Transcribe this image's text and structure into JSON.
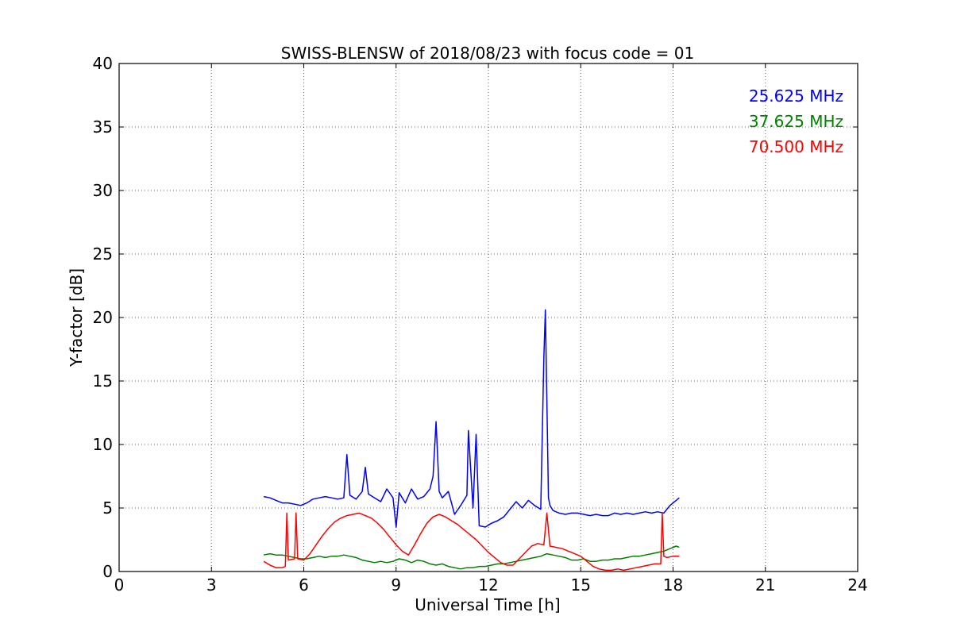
{
  "chart_data": {
    "type": "line",
    "title": "SWISS-BLENSW of 2018/08/23 with focus code = 01",
    "xlabel": "Universal Time [h]",
    "ylabel": "Y-factor [dB]",
    "xlim": [
      0,
      24
    ],
    "ylim": [
      0,
      40
    ],
    "xticks": [
      0,
      3,
      6,
      9,
      12,
      15,
      18,
      21,
      24
    ],
    "yticks": [
      0,
      5,
      10,
      15,
      20,
      25,
      30,
      35,
      40
    ],
    "xtick_labels": [
      "0",
      "3",
      "6",
      "9",
      "12",
      "15",
      "18",
      "21",
      "24"
    ],
    "ytick_labels": [
      "0",
      "5",
      "10",
      "15",
      "20",
      "25",
      "30",
      "35",
      "40"
    ],
    "grid": true,
    "legend_position": "top-right",
    "series": [
      {
        "name": "25.625 MHz",
        "color": "#0000ff",
        "x": [
          4.7,
          4.9,
          5.1,
          5.3,
          5.5,
          5.7,
          5.9,
          6.1,
          6.3,
          6.5,
          6.7,
          6.9,
          7.1,
          7.3,
          7.4,
          7.5,
          7.7,
          7.9,
          8.0,
          8.1,
          8.3,
          8.5,
          8.7,
          8.9,
          9.0,
          9.1,
          9.3,
          9.5,
          9.7,
          9.9,
          10.1,
          10.2,
          10.3,
          10.4,
          10.5,
          10.7,
          10.9,
          11.1,
          11.3,
          11.35,
          11.5,
          11.6,
          11.7,
          11.9,
          12.1,
          12.3,
          12.5,
          12.7,
          12.9,
          13.1,
          13.3,
          13.5,
          13.7,
          13.8,
          13.85,
          13.9,
          13.95,
          14.0,
          14.1,
          14.3,
          14.5,
          14.7,
          14.9,
          15.1,
          15.3,
          15.5,
          15.7,
          15.9,
          16.1,
          16.3,
          16.5,
          16.7,
          16.9,
          17.1,
          17.3,
          17.5,
          17.7,
          17.9,
          18.0,
          18.1,
          18.2
        ],
        "y": [
          5.9,
          5.8,
          5.6,
          5.4,
          5.4,
          5.3,
          5.2,
          5.4,
          5.7,
          5.8,
          5.9,
          5.8,
          5.7,
          5.8,
          9.2,
          6.0,
          5.7,
          6.3,
          8.2,
          6.1,
          5.8,
          5.5,
          6.5,
          5.8,
          3.5,
          6.2,
          5.4,
          6.5,
          5.7,
          5.9,
          6.5,
          7.5,
          11.8,
          6.3,
          5.8,
          6.3,
          4.5,
          5.2,
          6.0,
          11.1,
          5.0,
          10.8,
          3.6,
          3.5,
          3.8,
          4.0,
          4.3,
          4.9,
          5.5,
          5.0,
          5.6,
          5.2,
          4.9,
          16.8,
          20.6,
          13.5,
          5.8,
          5.2,
          4.8,
          4.6,
          4.5,
          4.6,
          4.6,
          4.5,
          4.4,
          4.5,
          4.4,
          4.4,
          4.6,
          4.5,
          4.6,
          4.5,
          4.6,
          4.7,
          4.6,
          4.7,
          4.6,
          5.2,
          5.4,
          5.6,
          5.8
        ]
      },
      {
        "name": "37.625 MHz",
        "color": "#008000",
        "x": [
          4.7,
          4.9,
          5.1,
          5.3,
          5.5,
          5.7,
          5.9,
          6.1,
          6.3,
          6.5,
          6.7,
          6.9,
          7.1,
          7.3,
          7.5,
          7.7,
          7.9,
          8.1,
          8.3,
          8.5,
          8.7,
          8.9,
          9.1,
          9.3,
          9.5,
          9.7,
          9.9,
          10.1,
          10.3,
          10.5,
          10.7,
          10.9,
          11.1,
          11.3,
          11.5,
          11.7,
          11.9,
          12.1,
          12.3,
          12.5,
          12.7,
          12.9,
          13.1,
          13.3,
          13.5,
          13.7,
          13.9,
          14.1,
          14.3,
          14.5,
          14.7,
          14.9,
          15.1,
          15.3,
          15.5,
          15.7,
          15.9,
          16.1,
          16.3,
          16.5,
          16.7,
          16.9,
          17.1,
          17.3,
          17.5,
          17.7,
          17.9,
          18.1,
          18.2
        ],
        "y": [
          1.3,
          1.4,
          1.3,
          1.3,
          1.2,
          1.1,
          1.0,
          1.0,
          1.1,
          1.2,
          1.1,
          1.2,
          1.2,
          1.3,
          1.2,
          1.1,
          0.9,
          0.8,
          0.7,
          0.8,
          0.7,
          0.8,
          1.0,
          0.9,
          0.7,
          0.9,
          0.8,
          0.6,
          0.5,
          0.6,
          0.4,
          0.3,
          0.2,
          0.3,
          0.3,
          0.4,
          0.4,
          0.5,
          0.6,
          0.6,
          0.7,
          0.8,
          0.9,
          1.0,
          1.1,
          1.2,
          1.4,
          1.3,
          1.2,
          1.1,
          0.9,
          0.9,
          1.0,
          0.8,
          0.8,
          0.9,
          0.9,
          1.0,
          1.0,
          1.1,
          1.2,
          1.2,
          1.3,
          1.4,
          1.5,
          1.6,
          1.8,
          2.0,
          1.9
        ]
      },
      {
        "name": "70.500 MHz",
        "color": "#ff0000",
        "x": [
          4.7,
          4.9,
          5.1,
          5.3,
          5.4,
          5.45,
          5.5,
          5.7,
          5.75,
          5.8,
          6.0,
          6.2,
          6.4,
          6.6,
          6.8,
          7.0,
          7.2,
          7.4,
          7.6,
          7.8,
          8.0,
          8.2,
          8.4,
          8.6,
          8.8,
          9.0,
          9.2,
          9.4,
          9.6,
          9.8,
          10.0,
          10.2,
          10.4,
          10.6,
          10.8,
          11.0,
          11.2,
          11.4,
          11.6,
          11.8,
          12.0,
          12.2,
          12.4,
          12.6,
          12.8,
          13.0,
          13.2,
          13.4,
          13.6,
          13.8,
          13.9,
          14.0,
          14.2,
          14.4,
          14.6,
          14.8,
          15.0,
          15.2,
          15.4,
          15.6,
          15.8,
          16.0,
          16.2,
          16.4,
          16.6,
          16.8,
          17.0,
          17.2,
          17.4,
          17.6,
          17.65,
          17.7,
          17.8,
          18.0,
          18.2
        ],
        "y": [
          0.8,
          0.5,
          0.3,
          0.3,
          0.4,
          4.6,
          0.9,
          1.0,
          4.6,
          1.0,
          0.9,
          1.4,
          2.1,
          2.8,
          3.4,
          3.9,
          4.2,
          4.4,
          4.5,
          4.6,
          4.4,
          4.2,
          3.8,
          3.3,
          2.7,
          2.1,
          1.6,
          1.3,
          2.1,
          3.0,
          3.8,
          4.3,
          4.5,
          4.3,
          4.0,
          3.7,
          3.3,
          2.9,
          2.5,
          2.0,
          1.5,
          1.1,
          0.7,
          0.5,
          0.5,
          1.0,
          1.5,
          2.0,
          2.2,
          2.1,
          4.6,
          2.0,
          1.9,
          1.8,
          1.6,
          1.4,
          1.2,
          0.8,
          0.4,
          0.2,
          0.1,
          0.1,
          0.2,
          0.1,
          0.2,
          0.3,
          0.4,
          0.5,
          0.6,
          0.6,
          4.6,
          1.2,
          1.1,
          1.2,
          1.2
        ]
      }
    ]
  }
}
